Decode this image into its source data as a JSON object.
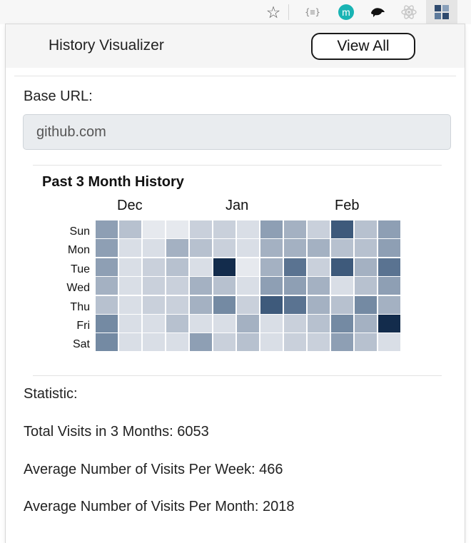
{
  "toolbar": {
    "icons": [
      "star-icon",
      "json-viewer-icon",
      "m-extension-icon",
      "squid-icon",
      "react-icon",
      "history-visualizer-icon"
    ],
    "jsonv_text": "{≡}",
    "m_text": "m"
  },
  "popup": {
    "title": "History Visualizer",
    "view_all_label": "View All",
    "base_url_label": "Base URL:",
    "base_url_value": "github.com"
  },
  "chart_data": {
    "type": "heatmap",
    "title": "Past 3 Month History",
    "months": [
      "Dec",
      "Jan",
      "Feb"
    ],
    "days": [
      "Sun",
      "Mon",
      "Tue",
      "Wed",
      "Thu",
      "Fri",
      "Sat"
    ],
    "weeks": 13,
    "intensity_scale": "0 (lightest) to 9 (darkest)",
    "values": [
      [
        5,
        3,
        0,
        0,
        2,
        2,
        1,
        5,
        4,
        2,
        8,
        3,
        5
      ],
      [
        5,
        1,
        1,
        4,
        3,
        2,
        1,
        4,
        4,
        4,
        3,
        3,
        5
      ],
      [
        5,
        1,
        2,
        3,
        1,
        9,
        0,
        4,
        7,
        2,
        8,
        4,
        7
      ],
      [
        4,
        1,
        2,
        2,
        4,
        3,
        1,
        5,
        5,
        4,
        1,
        3,
        5
      ],
      [
        3,
        1,
        2,
        2,
        4,
        6,
        2,
        8,
        7,
        4,
        3,
        6,
        4
      ],
      [
        6,
        1,
        1,
        3,
        1,
        1,
        4,
        1,
        2,
        3,
        6,
        4,
        9
      ],
      [
        6,
        1,
        1,
        1,
        5,
        2,
        3,
        1,
        2,
        2,
        5,
        3,
        1
      ]
    ]
  },
  "stats": {
    "heading": "Statistic:",
    "total": "Total Visits in 3 Months: 6053",
    "per_week": "Average Number of Visits Per Week: 466",
    "per_month": "Average Number of Visits Per Month: 2018"
  },
  "colors": {
    "heat_ramp": [
      "#e6e9ee",
      "#d9dee6",
      "#c9d0db",
      "#b7c1cf",
      "#a4b1c2",
      "#8e9fb4",
      "#748aa3",
      "#5a7391",
      "#3e5a7b",
      "#132c4c"
    ]
  }
}
